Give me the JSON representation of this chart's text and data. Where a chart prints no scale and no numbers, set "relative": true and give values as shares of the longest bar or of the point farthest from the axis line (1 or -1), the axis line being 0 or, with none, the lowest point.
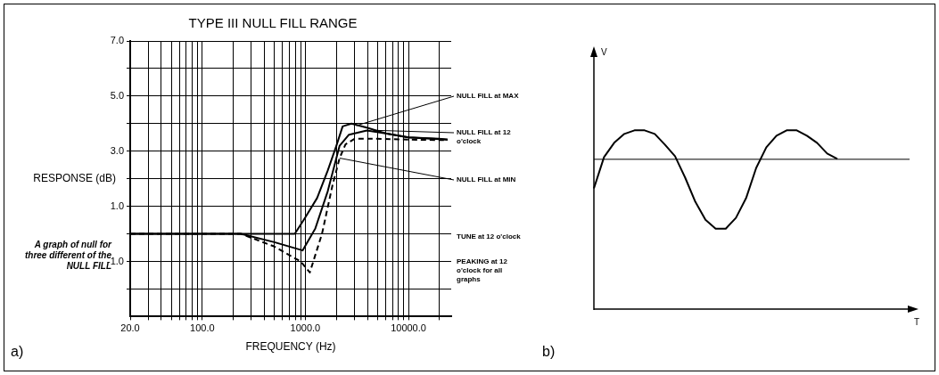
{
  "chart_data": [
    {
      "type": "line",
      "title": "TYPE III NULL FILL RANGE",
      "xlabel": "FREQUENCY (Hz)",
      "ylabel": "RESPONSE (dB)",
      "log": "x",
      "grid": true,
      "xlim": [
        20,
        26000
      ],
      "ylim": [
        -3,
        7
      ],
      "xticks": [
        {
          "value": 20,
          "label": "20.0"
        },
        {
          "value": 30,
          "label": null
        },
        {
          "value": 40,
          "label": null
        },
        {
          "value": 50,
          "label": null
        },
        {
          "value": 60,
          "label": null
        },
        {
          "value": 70,
          "label": null
        },
        {
          "value": 80,
          "label": null
        },
        {
          "value": 90,
          "label": null
        },
        {
          "value": 100,
          "label": "100.0"
        },
        {
          "value": 200,
          "label": null
        },
        {
          "value": 300,
          "label": null
        },
        {
          "value": 400,
          "label": null
        },
        {
          "value": 500,
          "label": null
        },
        {
          "value": 600,
          "label": null
        },
        {
          "value": 700,
          "label": null
        },
        {
          "value": 800,
          "label": null
        },
        {
          "value": 900,
          "label": null
        },
        {
          "value": 1000,
          "label": "1000.0"
        },
        {
          "value": 2000,
          "label": null
        },
        {
          "value": 3000,
          "label": null
        },
        {
          "value": 4000,
          "label": null
        },
        {
          "value": 5000,
          "label": null
        },
        {
          "value": 6000,
          "label": null
        },
        {
          "value": 7000,
          "label": null
        },
        {
          "value": 8000,
          "label": null
        },
        {
          "value": 9000,
          "label": null
        },
        {
          "value": 10000,
          "label": "10000.0"
        },
        {
          "value": 20000,
          "label": null
        }
      ],
      "yticks": [
        {
          "value": -2,
          "label": null
        },
        {
          "value": -1,
          "label": "-1.0"
        },
        {
          "value": 0,
          "label": null
        },
        {
          "value": 1,
          "label": "1.0"
        },
        {
          "value": 2,
          "label": null
        },
        {
          "value": 3,
          "label": "3.0"
        },
        {
          "value": 4,
          "label": null
        },
        {
          "value": 5,
          "label": "5.0"
        },
        {
          "value": 6,
          "label": null
        },
        {
          "value": 7,
          "label": "7.0"
        }
      ],
      "series": [
        {
          "color": "#000000",
          "line_style": "solid",
          "x": [
            20,
            100,
            200,
            500,
            790,
            1000,
            1300,
            1650,
            2000,
            2300,
            2800,
            4000,
            6000,
            10000,
            20000,
            24000
          ],
          "values": [
            0,
            0,
            0,
            0,
            0,
            0.6,
            1.3,
            2.3,
            3.2,
            3.9,
            4.0,
            3.85,
            3.65,
            3.5,
            3.45,
            3.42
          ]
        },
        {
          "color": "#000000",
          "line_style": "solid",
          "x": [
            20,
            100,
            237,
            500,
            940,
            1250,
            1650,
            2150,
            2650,
            3950,
            6000,
            10000,
            24000
          ],
          "values": [
            0,
            0,
            0,
            -0.3,
            -0.6,
            0.2,
            1.55,
            3.2,
            3.6,
            3.75,
            3.65,
            3.5,
            3.42
          ]
        },
        {
          "color": "#000000",
          "line_style": "dashed",
          "x": [
            20,
            100,
            237,
            494,
            900,
            1105,
            1450,
            1830,
            2150,
            2450,
            3000,
            5000,
            10000,
            24000
          ],
          "values": [
            0,
            0,
            0,
            -0.45,
            -1.0,
            -1.4,
            0.0,
            1.75,
            2.75,
            3.25,
            3.45,
            3.45,
            3.42,
            3.4
          ]
        }
      ],
      "annotations": [
        {
          "text": "NULL FILL at MAX",
          "x": 3130,
          "y": 3.93
        },
        {
          "text": "NULL FILL at 12 o'clock",
          "x": 4530,
          "y": 3.76
        },
        {
          "text": "NULL FILL at MIN",
          "x": 2150,
          "y": 2.75
        },
        "TUNE at 12 o'clock",
        "PEAKING at 12 o'clock for all graphs",
        "A graph of null for three different of the NULL FILL",
        "a)"
      ]
    },
    {
      "type": "line",
      "relative": true,
      "xlabel": "T",
      "ylabel": "V",
      "categories": [
        null,
        null,
        null,
        null,
        null,
        null,
        null,
        null,
        null,
        null,
        null,
        null,
        null,
        null,
        null,
        null,
        null,
        null,
        null,
        null,
        null,
        null,
        null,
        null,
        null,
        null,
        null,
        null,
        null,
        null,
        null,
        null,
        null
      ],
      "series": [
        {
          "color": "#000000",
          "values": [
            0.675,
            0.85,
            0.93,
            0.98,
            1.0,
            1.0,
            0.98,
            0.92,
            0.855,
            0.735,
            0.6,
            0.5,
            0.45,
            0.45,
            0.51,
            0.62,
            0.79,
            0.905,
            0.97,
            1.0,
            1.0,
            0.97,
            0.93,
            0.87,
            0.84,
            null,
            null,
            null,
            null,
            null,
            null,
            null,
            null
          ]
        }
      ],
      "ref_lines": [
        {
          "axis": "y",
          "value": 0.838
        }
      ],
      "annotations": [
        "b)"
      ]
    }
  ]
}
